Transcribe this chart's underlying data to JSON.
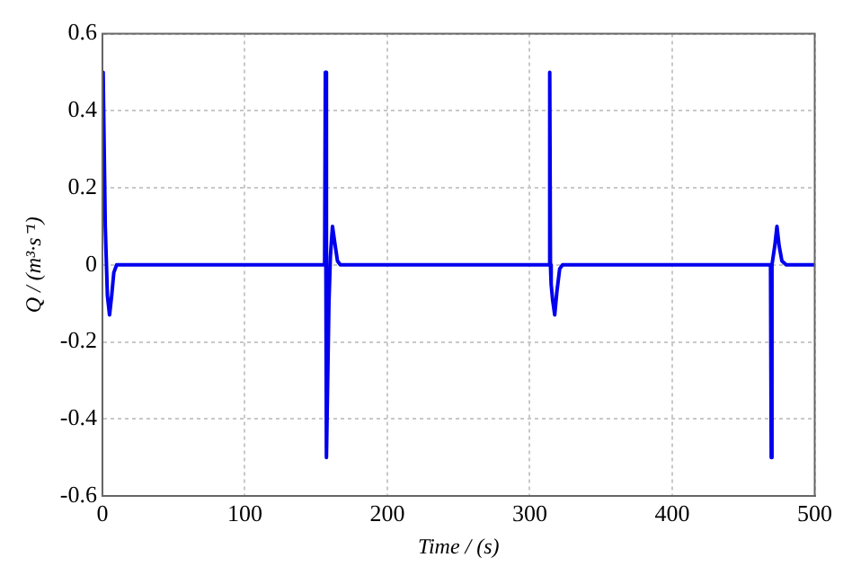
{
  "chart_data": {
    "type": "line",
    "xlabel": "Time / (s)",
    "ylabel": "Q / (m³·s⁻¹)",
    "series": [
      {
        "color": "#0000ee",
        "x": [
          0,
          0.5,
          2,
          3.5,
          5,
          6.5,
          8,
          10,
          20,
          156,
          156.5,
          157,
          157.5,
          159,
          160,
          161.5,
          163,
          165,
          167,
          180,
          313.5,
          314,
          314.5,
          315,
          316,
          317.5,
          319,
          321,
          323,
          340,
          469,
          469.5,
          470,
          472,
          473.5,
          475,
          477,
          480,
          500
        ],
        "values": [
          0.5,
          0.5,
          0.1,
          -0.08,
          -0.13,
          -0.08,
          -0.02,
          0,
          0,
          0,
          0.5,
          0,
          -0.5,
          -0.1,
          0.02,
          0.1,
          0.06,
          0.01,
          0,
          0,
          0,
          0.5,
          0,
          -0.05,
          -0.09,
          -0.13,
          -0.07,
          -0.01,
          0,
          0,
          0,
          -0.5,
          0,
          0.05,
          0.1,
          0.05,
          0.01,
          0,
          0
        ]
      }
    ],
    "xlim": [
      0,
      500
    ],
    "xticks": [
      0,
      100,
      200,
      300,
      400,
      500
    ],
    "ylim": [
      -0.6,
      0.6
    ],
    "yticks": [
      -0.6,
      -0.4,
      -0.2,
      0,
      0.2,
      0.4,
      0.6
    ],
    "grid": true,
    "legend": false,
    "marker": "none",
    "line_style": "solid"
  }
}
